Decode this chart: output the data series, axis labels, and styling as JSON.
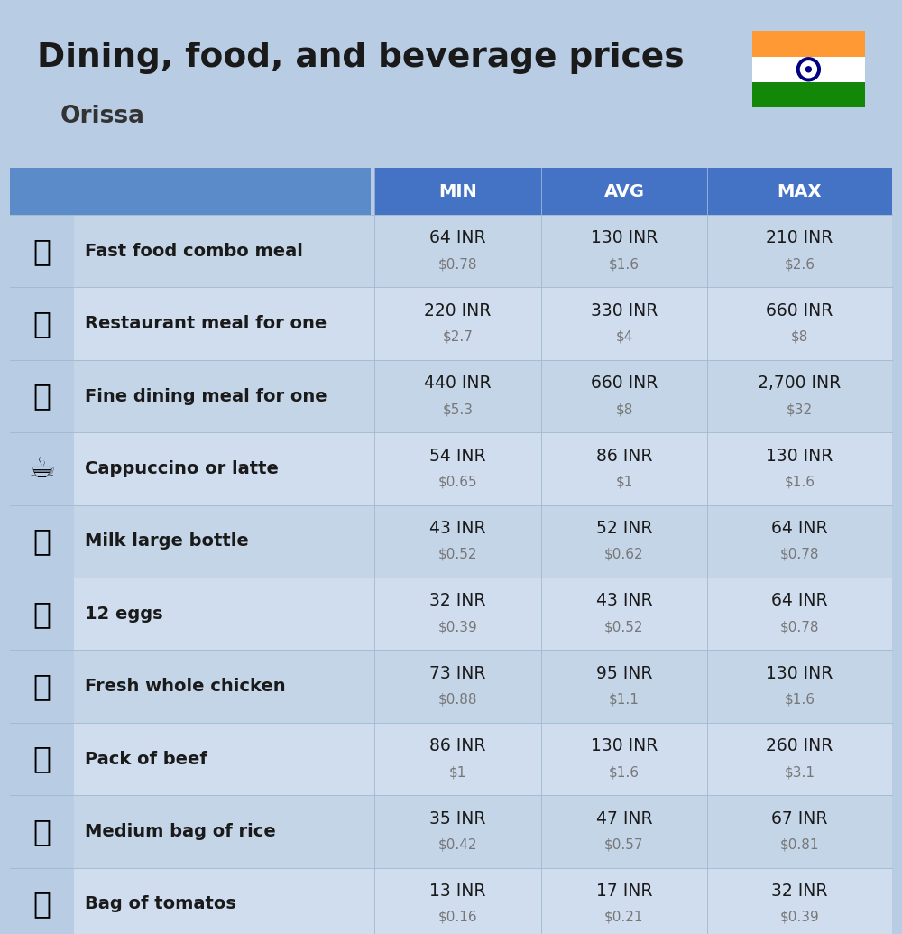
{
  "title": "Dining, food, and beverage prices",
  "subtitle": "Orissa",
  "background_color": "#b8cce4",
  "header_color": "#4472c4",
  "header_left_color": "#5b8bc9",
  "header_text_color": "#ffffff",
  "row_color_odd": "#c5d5e8",
  "row_color_even": "#d0ddef",
  "icon_cell_color": "#b8cce4",
  "col_headers": [
    "MIN",
    "AVG",
    "MAX"
  ],
  "rows": [
    {
      "label": "Fast food combo meal",
      "emoji": "🍔",
      "min_inr": "64 INR",
      "min_usd": "$0.78",
      "avg_inr": "130 INR",
      "avg_usd": "$1.6",
      "max_inr": "210 INR",
      "max_usd": "$2.6"
    },
    {
      "label": "Restaurant meal for one",
      "emoji": "🍳",
      "min_inr": "220 INR",
      "min_usd": "$2.7",
      "avg_inr": "330 INR",
      "avg_usd": "$4",
      "max_inr": "660 INR",
      "max_usd": "$8"
    },
    {
      "label": "Fine dining meal for one",
      "emoji": "🍽",
      "min_inr": "440 INR",
      "min_usd": "$5.3",
      "avg_inr": "660 INR",
      "avg_usd": "$8",
      "max_inr": "2,700 INR",
      "max_usd": "$32"
    },
    {
      "label": "Cappuccino or latte",
      "emoji": "☕",
      "min_inr": "54 INR",
      "min_usd": "$0.65",
      "avg_inr": "86 INR",
      "avg_usd": "$1",
      "max_inr": "130 INR",
      "max_usd": "$1.6"
    },
    {
      "label": "Milk large bottle",
      "emoji": "🥛",
      "min_inr": "43 INR",
      "min_usd": "$0.52",
      "avg_inr": "52 INR",
      "avg_usd": "$0.62",
      "max_inr": "64 INR",
      "max_usd": "$0.78"
    },
    {
      "label": "12 eggs",
      "emoji": "🥚",
      "min_inr": "32 INR",
      "min_usd": "$0.39",
      "avg_inr": "43 INR",
      "avg_usd": "$0.52",
      "max_inr": "64 INR",
      "max_usd": "$0.78"
    },
    {
      "label": "Fresh whole chicken",
      "emoji": "🐔",
      "min_inr": "73 INR",
      "min_usd": "$0.88",
      "avg_inr": "95 INR",
      "avg_usd": "$1.1",
      "max_inr": "130 INR",
      "max_usd": "$1.6"
    },
    {
      "label": "Pack of beef",
      "emoji": "🥩",
      "min_inr": "86 INR",
      "min_usd": "$1",
      "avg_inr": "130 INR",
      "avg_usd": "$1.6",
      "max_inr": "260 INR",
      "max_usd": "$3.1"
    },
    {
      "label": "Medium bag of rice",
      "emoji": "🍚",
      "min_inr": "35 INR",
      "min_usd": "$0.42",
      "avg_inr": "47 INR",
      "avg_usd": "$0.57",
      "max_inr": "67 INR",
      "max_usd": "$0.81"
    },
    {
      "label": "Bag of tomatos",
      "emoji": "🍅",
      "min_inr": "13 INR",
      "min_usd": "$0.16",
      "avg_inr": "17 INR",
      "avg_usd": "$0.21",
      "max_inr": "32 INR",
      "max_usd": "$0.39"
    }
  ]
}
